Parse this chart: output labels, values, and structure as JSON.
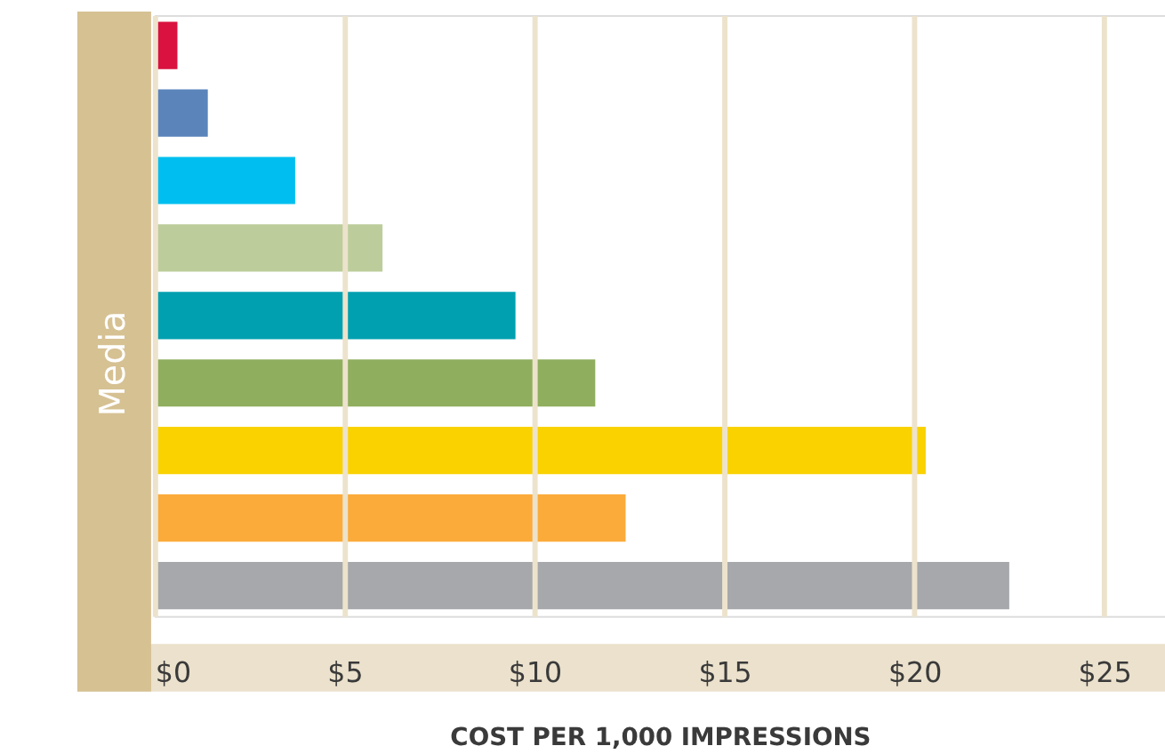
{
  "chart_data": {
    "type": "bar",
    "orientation": "horizontal",
    "xlabel": "COST PER 1,000 IMPRESSIONS",
    "ylabel": "Media",
    "categories": [
      null,
      null,
      null,
      null,
      null,
      null,
      null,
      null,
      null
    ],
    "values": [
      0.6,
      1.4,
      3.7,
      6.0,
      9.5,
      11.6,
      20.3,
      12.4,
      22.5
    ],
    "colors": [
      "#d9123f",
      "#5b84bb",
      "#00bff0",
      "#bccd9b",
      "#00a0b0",
      "#8fae5e",
      "#f9d200",
      "#fbab3a",
      "#a6a8ab"
    ],
    "xlim": [
      0,
      26.6
    ],
    "xticks": [
      {
        "value": 0,
        "label": "$0"
      },
      {
        "value": 5,
        "label": "$5"
      },
      {
        "value": 10,
        "label": "$10"
      },
      {
        "value": 15,
        "label": "$15"
      },
      {
        "value": 20,
        "label": "$20"
      },
      {
        "value": 25,
        "label": "$25"
      }
    ],
    "grid": "x",
    "tick_labels": "x"
  }
}
